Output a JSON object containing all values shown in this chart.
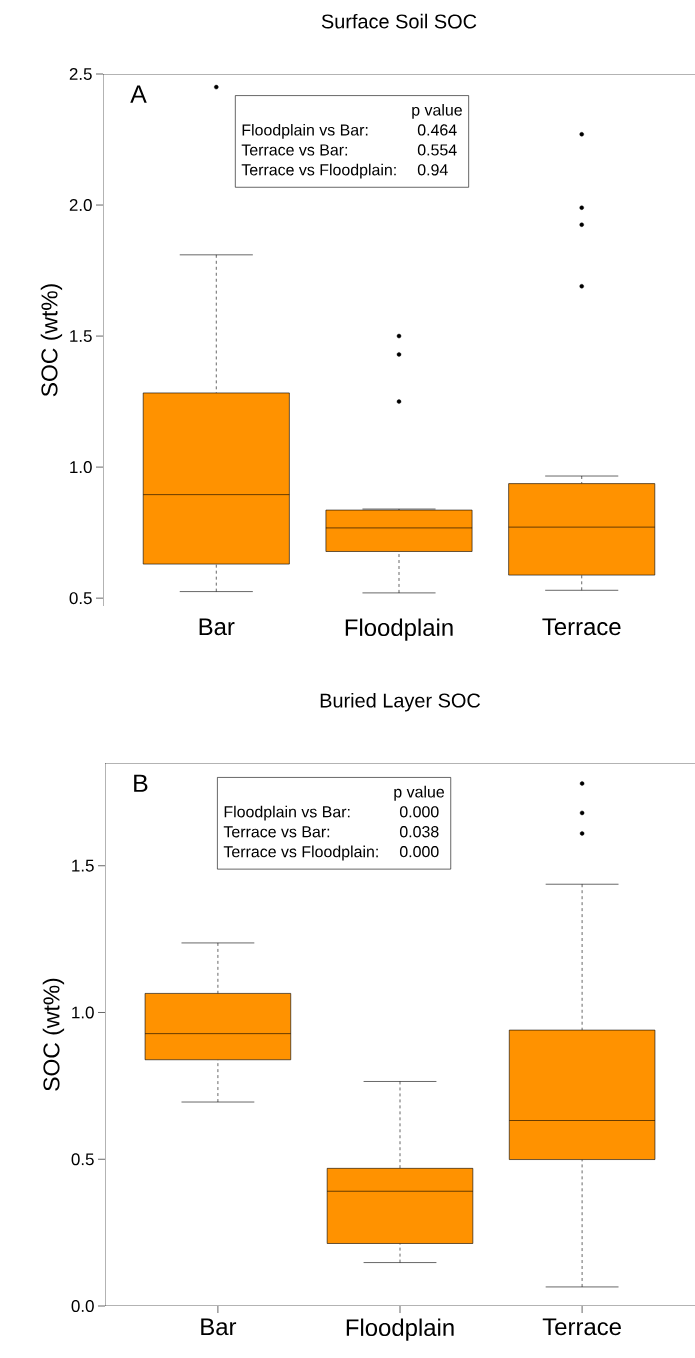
{
  "chart_data": [
    {
      "type": "box",
      "title": "Surface Soil SOC",
      "ylabel": "SOC (wt%)",
      "categories": [
        "Bar",
        "Floodplain",
        "Terrace"
      ],
      "color": "#ff9200",
      "ylim": [
        0.47,
        2.5
      ],
      "yticks": [
        {
          "value": 0.5,
          "label": "0.5"
        },
        {
          "value": 1.0,
          "label": "1.0"
        },
        {
          "value": 1.5,
          "label": "1.5"
        },
        {
          "value": 2.0,
          "label": "2.0"
        },
        {
          "value": 2.5,
          "label": "2.5"
        }
      ],
      "boxes": [
        {
          "low": 0.525,
          "q1": 0.63,
          "median": 0.895,
          "q3": 1.283,
          "high": 1.81,
          "outliers": [
            2.45
          ]
        },
        {
          "low": 0.52,
          "q1": 0.678,
          "median": 0.768,
          "q3": 0.836,
          "high": 0.84,
          "outliers": [
            1.25,
            1.43,
            1.5
          ]
        },
        {
          "low": 0.53,
          "q1": 0.588,
          "median": 0.771,
          "q3": 0.937,
          "high": 0.966,
          "outliers": [
            1.69,
            1.925,
            1.99,
            2.27
          ]
        }
      ],
      "annotations": [
        "A",
        "p value",
        "Floodplain vs Bar:",
        "0.464",
        "Terrace vs Bar:",
        "0.554",
        "Terrace vs Floodplain:",
        "0.94"
      ]
    },
    {
      "type": "box",
      "title": "Buried Layer SOC",
      "ylabel": "SOC (wt%)",
      "categories": [
        "Bar",
        "Floodplain",
        "Terrace"
      ],
      "color": "#ff9200",
      "ylim": [
        0,
        1.85
      ],
      "yticks": [
        {
          "value": 0.0,
          "label": "0.0"
        },
        {
          "value": 0.5,
          "label": "0.5"
        },
        {
          "value": 1.0,
          "label": "1.0"
        },
        {
          "value": 1.5,
          "label": "1.5"
        }
      ],
      "boxes": [
        {
          "low": 0.695,
          "q1": 0.839,
          "median": 0.928,
          "q3": 1.065,
          "high": 1.237
        },
        {
          "low": 0.148,
          "q1": 0.213,
          "median": 0.391,
          "q3": 0.469,
          "high": 0.765
        },
        {
          "low": 0.065,
          "q1": 0.499,
          "median": 0.632,
          "q3": 0.94,
          "high": 1.437,
          "outliers": [
            1.61,
            1.68,
            1.78
          ]
        }
      ],
      "annotations": [
        "B",
        "p value",
        "Floodplain vs Bar:",
        "0.000",
        "Terrace vs Bar:",
        "0.038",
        "Terrace vs Floodplain:",
        "0.000"
      ]
    }
  ]
}
